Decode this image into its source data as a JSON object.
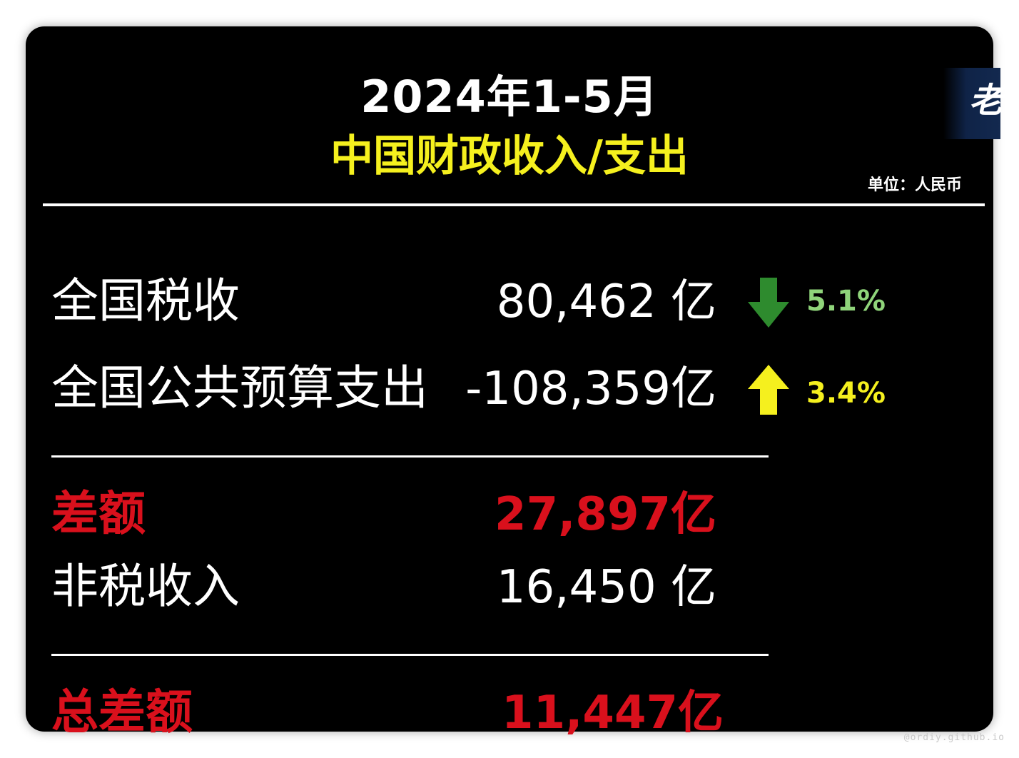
{
  "header": {
    "title": "2024年1-5月",
    "subtitle": "中国财政收入/支出",
    "unit": "单位：人民币",
    "logo_char": "老"
  },
  "rows": [
    {
      "label": "全国税收",
      "value": "80,462 亿",
      "change": "5.1%",
      "direction": "down",
      "change_color": "#8fd47a",
      "arrow_color": "#2e8b2e"
    },
    {
      "label": "全国公共预算支出",
      "value": "-108,359亿",
      "change": "3.4%",
      "direction": "up",
      "change_color": "#f5f01e",
      "arrow_color": "#f5f01e"
    }
  ],
  "difference": {
    "label": "差额",
    "value": "27,897亿",
    "color": "#d9101c"
  },
  "non_tax": {
    "label": "非税收入",
    "value": "16,450 亿"
  },
  "total_difference": {
    "label": "总差额",
    "value": "11,447亿",
    "color": "#d9101c"
  },
  "watermark": "@ordiy.github.io"
}
